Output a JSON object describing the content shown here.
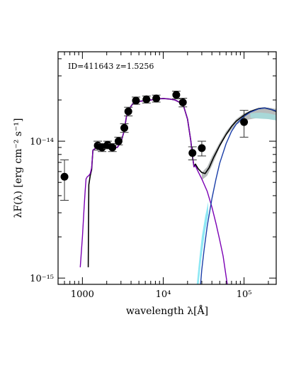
{
  "chart_data": {
    "type": "scatter",
    "annotation": "ID=411643 z=1.5256",
    "xlabel": "wavelength λ[Å]",
    "ylabel": "λF(λ) [erg cm⁻² s⁻¹]",
    "x_scale": "log",
    "y_scale": "log",
    "xlim": [
      500,
      250000
    ],
    "ylim": [
      9e-16,
      4.5e-14
    ],
    "x_ticks": [
      {
        "value": 1000,
        "label": "1000"
      },
      {
        "value": 10000,
        "label": "10⁴"
      },
      {
        "value": 100000,
        "label": "10⁵"
      }
    ],
    "y_ticks": [
      {
        "value": 1e-15,
        "label": "10⁻¹⁵"
      },
      {
        "value": 1e-14,
        "label": "10⁻¹⁴"
      }
    ],
    "photometry": [
      {
        "x": 600,
        "y": 5.5e-15,
        "ylo": 3.7e-15,
        "yhi": 7.3e-15
      },
      {
        "x": 1550,
        "y": 9.3e-15,
        "ylo": 8.6e-15,
        "yhi": 1e-14
      },
      {
        "x": 1750,
        "y": 9e-15,
        "ylo": 8.4e-15,
        "yhi": 9.6e-15
      },
      {
        "x": 2050,
        "y": 9.4e-15,
        "ylo": 8.8e-15,
        "yhi": 1e-14
      },
      {
        "x": 2350,
        "y": 9e-15,
        "ylo": 8.4e-15,
        "yhi": 9.6e-15
      },
      {
        "x": 2800,
        "y": 1e-14,
        "ylo": 9.4e-15,
        "yhi": 1.07e-14
      },
      {
        "x": 3300,
        "y": 1.25e-14,
        "ylo": 1.16e-14,
        "yhi": 1.34e-14
      },
      {
        "x": 3700,
        "y": 1.65e-14,
        "ylo": 1.53e-14,
        "yhi": 1.77e-14
      },
      {
        "x": 4600,
        "y": 1.98e-14,
        "ylo": 1.86e-14,
        "yhi": 2.1e-14
      },
      {
        "x": 6200,
        "y": 2.02e-14,
        "ylo": 1.9e-14,
        "yhi": 2.14e-14
      },
      {
        "x": 8200,
        "y": 2.05e-14,
        "ylo": 1.93e-14,
        "yhi": 2.17e-14
      },
      {
        "x": 14500,
        "y": 2.18e-14,
        "ylo": 2.04e-14,
        "yhi": 2.32e-14
      },
      {
        "x": 17500,
        "y": 1.92e-14,
        "ylo": 1.78e-14,
        "yhi": 2.06e-14
      },
      {
        "x": 23000,
        "y": 8.2e-15,
        "ylo": 7.3e-15,
        "yhi": 9.1e-15
      },
      {
        "x": 30000,
        "y": 8.9e-15,
        "ylo": 7.8e-15,
        "yhi": 1e-14
      },
      {
        "x": 100000,
        "y": 1.38e-14,
        "ylo": 1.07e-14,
        "yhi": 1.68e-14
      }
    ],
    "series": [
      {
        "color": "#000000",
        "points": [
          [
            1180,
            1.2e-15
          ],
          [
            1190,
            2.5e-15
          ],
          [
            1200,
            4.8e-15
          ],
          [
            1250,
            5.6e-15
          ],
          [
            1300,
            6.2e-15
          ],
          [
            1350,
            8.6e-15
          ],
          [
            1500,
            9e-15
          ],
          [
            1700,
            9.1e-15
          ],
          [
            2000,
            9.2e-15
          ],
          [
            2400,
            9.1e-15
          ],
          [
            2700,
            9e-15
          ],
          [
            3000,
            9.8e-15
          ],
          [
            3300,
            1.2e-14
          ],
          [
            3500,
            1.5e-14
          ],
          [
            3800,
            1.72e-14
          ],
          [
            4200,
            1.88e-14
          ],
          [
            5000,
            1.95e-14
          ],
          [
            6000,
            1.98e-14
          ],
          [
            7000,
            2e-14
          ],
          [
            8000,
            2.02e-14
          ],
          [
            9000,
            2.04e-14
          ],
          [
            10000,
            2.05e-14
          ],
          [
            12000,
            2.03e-14
          ],
          [
            14000,
            2e-14
          ],
          [
            16000,
            1.92e-14
          ],
          [
            18000,
            1.78e-14
          ],
          [
            20000,
            1.45e-14
          ],
          [
            22000,
            1e-14
          ],
          [
            23000,
            7.8e-15
          ],
          [
            24000,
            6.5e-15
          ],
          [
            25000,
            6.8e-15
          ],
          [
            27000,
            6.3e-15
          ],
          [
            30000,
            5.9e-15
          ],
          [
            33000,
            5.8e-15
          ],
          [
            37000,
            6.4e-15
          ],
          [
            42000,
            7.6e-15
          ],
          [
            50000,
            9.3e-15
          ],
          [
            60000,
            1.12e-14
          ],
          [
            70000,
            1.28e-14
          ],
          [
            80000,
            1.4e-14
          ],
          [
            100000,
            1.55e-14
          ],
          [
            120000,
            1.65e-14
          ],
          [
            150000,
            1.73e-14
          ],
          [
            180000,
            1.75e-14
          ],
          [
            220000,
            1.7e-14
          ],
          [
            250000,
            1.65e-14
          ]
        ]
      },
      {
        "color": "#7b00b4",
        "points": [
          [
            940,
            1.2e-15
          ],
          [
            1000,
            2e-15
          ],
          [
            1050,
            3.3e-15
          ],
          [
            1080,
            4.3e-15
          ],
          [
            1110,
            5.3e-15
          ],
          [
            1150,
            5.5e-15
          ],
          [
            1200,
            5.6e-15
          ],
          [
            1250,
            5.8e-15
          ],
          [
            1300,
            6.4e-15
          ],
          [
            1350,
            8.6e-15
          ],
          [
            1500,
            9e-15
          ],
          [
            1700,
            9.1e-15
          ],
          [
            2000,
            9.2e-15
          ],
          [
            2400,
            9.1e-15
          ],
          [
            2700,
            9e-15
          ],
          [
            3000,
            9.8e-15
          ],
          [
            3300,
            1.2e-14
          ],
          [
            3500,
            1.5e-14
          ],
          [
            3800,
            1.72e-14
          ],
          [
            4200,
            1.88e-14
          ],
          [
            5000,
            1.95e-14
          ],
          [
            6000,
            1.98e-14
          ],
          [
            7000,
            2e-14
          ],
          [
            8000,
            2.02e-14
          ],
          [
            9000,
            2.04e-14
          ],
          [
            10000,
            2.05e-14
          ],
          [
            12000,
            2.03e-14
          ],
          [
            14000,
            2e-14
          ],
          [
            16000,
            1.92e-14
          ],
          [
            18000,
            1.78e-14
          ],
          [
            20000,
            1.45e-14
          ],
          [
            22000,
            1e-14
          ],
          [
            23000,
            7.8e-15
          ],
          [
            24000,
            6.5e-15
          ],
          [
            25000,
            6.6e-15
          ],
          [
            27000,
            6e-15
          ],
          [
            30000,
            5.3e-15
          ],
          [
            35000,
            4.3e-15
          ],
          [
            40000,
            3.3e-15
          ],
          [
            45000,
            2.5e-15
          ],
          [
            50000,
            1.9e-15
          ],
          [
            55000,
            1.45e-15
          ],
          [
            62000,
            9e-16
          ]
        ]
      },
      {
        "color": "#1a3ea8",
        "points": [
          [
            29000,
            9e-16
          ],
          [
            30000,
            1.15e-15
          ],
          [
            32000,
            1.6e-15
          ],
          [
            35000,
            2.4e-15
          ],
          [
            40000,
            3.8e-15
          ],
          [
            45000,
            5.3e-15
          ],
          [
            50000,
            6.9e-15
          ],
          [
            60000,
            9.6e-15
          ],
          [
            70000,
            1.18e-14
          ],
          [
            80000,
            1.33e-14
          ],
          [
            100000,
            1.52e-14
          ],
          [
            120000,
            1.63e-14
          ],
          [
            150000,
            1.72e-14
          ],
          [
            180000,
            1.75e-14
          ],
          [
            220000,
            1.7e-14
          ],
          [
            250000,
            1.66e-14
          ]
        ]
      }
    ],
    "bands": [
      {
        "color": "#8ee8f4",
        "upper": [
          [
            26000,
            9e-16
          ],
          [
            28000,
            1.4e-15
          ],
          [
            30000,
            2e-15
          ],
          [
            33000,
            2.8e-15
          ],
          [
            36000,
            3.6e-15
          ]
        ],
        "lower": [
          [
            36000,
            2.9e-15
          ],
          [
            33000,
            2.2e-15
          ],
          [
            31000,
            1.7e-15
          ],
          [
            29000,
            1.25e-15
          ],
          [
            27500,
            9e-16
          ]
        ]
      },
      {
        "color": "#b8bcbc",
        "upper": [
          [
            30000,
            5.9e-15
          ],
          [
            35000,
            6.5e-15
          ],
          [
            40000,
            7.7e-15
          ],
          [
            50000,
            9.8e-15
          ],
          [
            60000,
            1.18e-14
          ],
          [
            80000,
            1.45e-14
          ],
          [
            100000,
            1.6e-14
          ],
          [
            130000,
            1.7e-14
          ],
          [
            160000,
            1.76e-14
          ],
          [
            200000,
            1.76e-14
          ],
          [
            250000,
            1.72e-14
          ]
        ],
        "lower": [
          [
            250000,
            1.5e-14
          ],
          [
            200000,
            1.5e-14
          ],
          [
            160000,
            1.49e-14
          ],
          [
            130000,
            1.46e-14
          ],
          [
            100000,
            1.42e-14
          ],
          [
            80000,
            1.32e-14
          ],
          [
            60000,
            1.1e-14
          ],
          [
            50000,
            9e-15
          ],
          [
            40000,
            6.6e-15
          ],
          [
            35000,
            5.6e-15
          ],
          [
            30000,
            5.2e-15
          ]
        ]
      },
      {
        "color": "#a8d8d8",
        "upper": [
          [
            120000,
            1.6e-14
          ],
          [
            160000,
            1.62e-14
          ],
          [
            200000,
            1.6e-14
          ],
          [
            250000,
            1.55e-14
          ]
        ],
        "lower": [
          [
            250000,
            1.42e-14
          ],
          [
            200000,
            1.45e-14
          ],
          [
            160000,
            1.46e-14
          ],
          [
            120000,
            1.48e-14
          ]
        ]
      }
    ]
  }
}
